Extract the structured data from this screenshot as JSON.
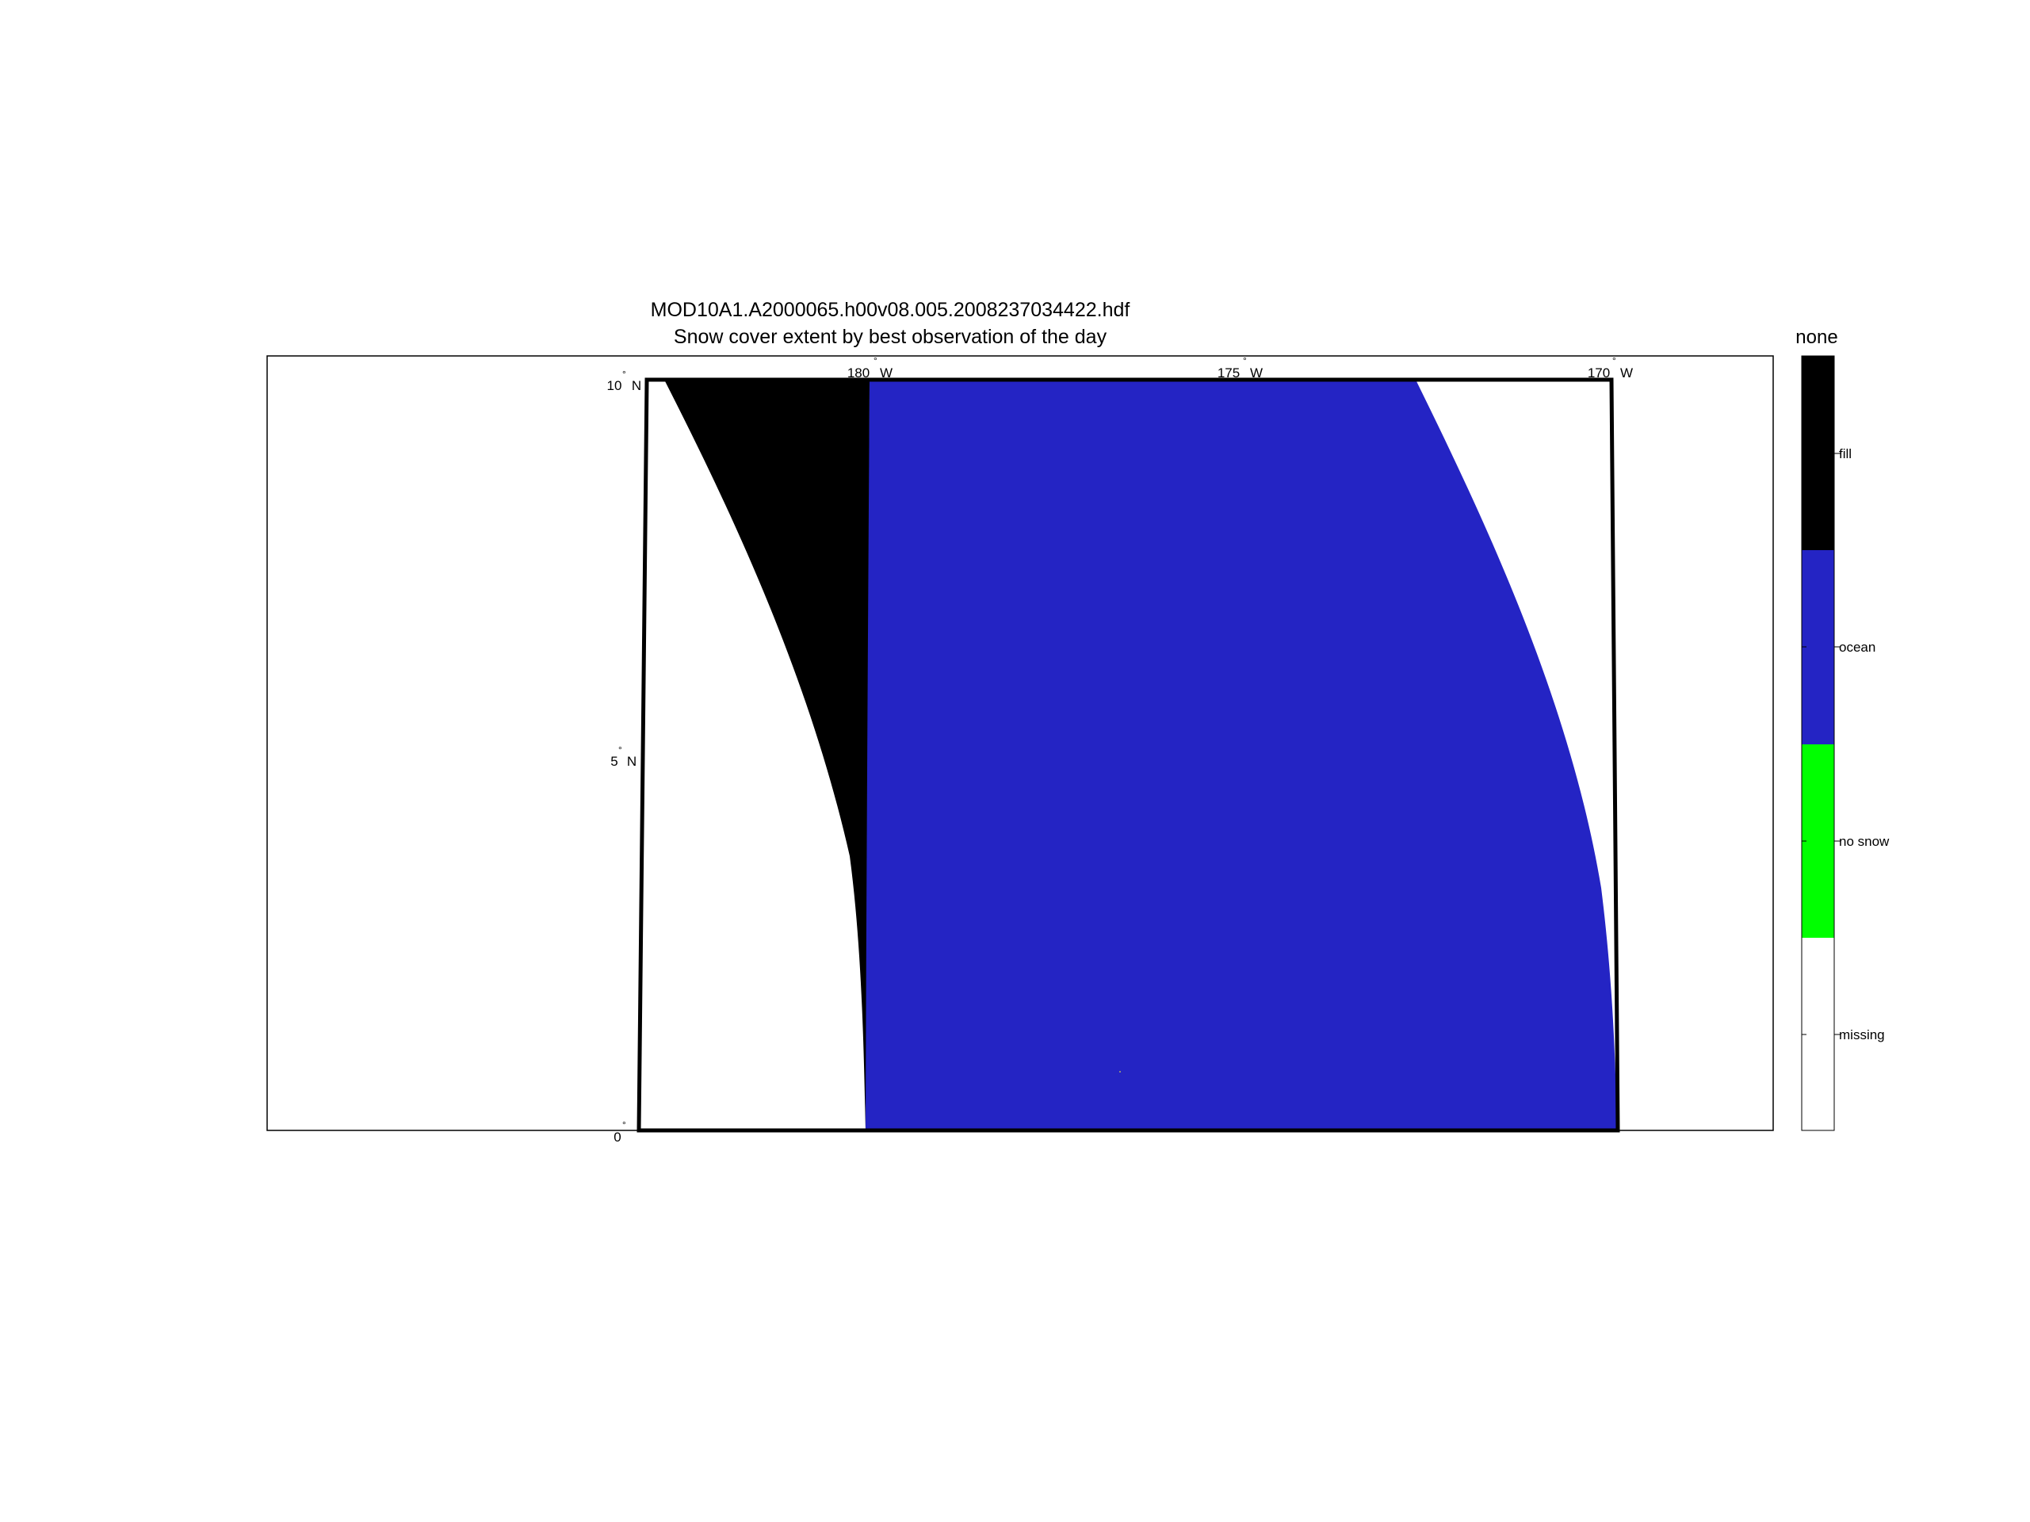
{
  "title": {
    "line1": "MOD10A1.A2000065.h00v08.005.2008237034422.hdf",
    "line2": "Snow cover extent by best observation of the day"
  },
  "map": {
    "lon_ticks": [
      {
        "lon": -180,
        "label": "180",
        "hemi": "W"
      },
      {
        "lon": -175,
        "label": "175",
        "hemi": "W"
      },
      {
        "lon": -170,
        "label": "170",
        "hemi": "W"
      }
    ],
    "lat_ticks": [
      {
        "lat": 10,
        "label": "10",
        "hemi": "N"
      },
      {
        "lat": 5,
        "label": "5",
        "hemi": "N"
      },
      {
        "lat": 0,
        "label": "0",
        "hemi": ""
      }
    ],
    "degree_symbol": "°",
    "colors": {
      "fill": "#000000",
      "ocean": "#2424c4",
      "no_snow": "#00ff00",
      "missing": "#ffffff",
      "frame": "#000000"
    }
  },
  "colorbar": {
    "title": "none",
    "classes": [
      {
        "label": "fill",
        "color": "#000000"
      },
      {
        "label": "ocean",
        "color": "#2424c4"
      },
      {
        "label": "no snow",
        "color": "#00ff00"
      },
      {
        "label": "missing",
        "color": "#ffffff"
      }
    ]
  }
}
